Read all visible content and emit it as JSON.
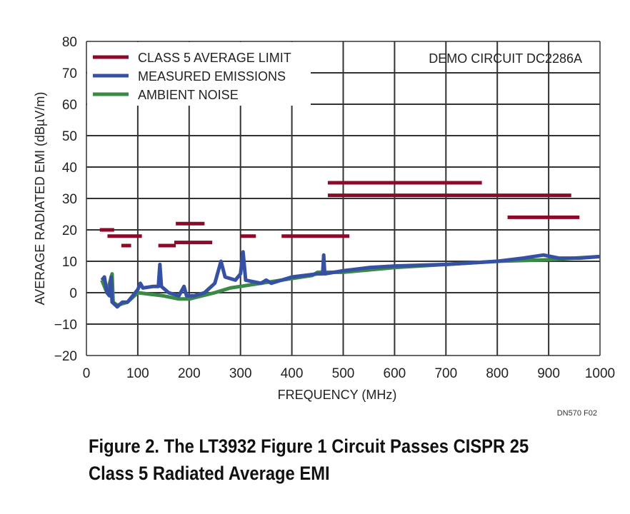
{
  "chart_data": {
    "type": "line",
    "xlabel": "FREQUENCY (MHz)",
    "ylabel": "AVERAGE RADIATED EMI  (dBµV/m)",
    "xlim": [
      0,
      1000
    ],
    "ylim": [
      -20,
      80
    ],
    "xticks": [
      0,
      100,
      200,
      300,
      400,
      500,
      600,
      700,
      800,
      900,
      1000
    ],
    "yticks": [
      -20,
      -10,
      0,
      10,
      20,
      30,
      40,
      50,
      60,
      70,
      80
    ],
    "grid": true,
    "legend_position": "top-left",
    "annotation": "DEMO CIRCUIT DC2286A",
    "figure_id": "DN570 F02",
    "series": [
      {
        "name": "CLASS 5 AVERAGE LIMIT",
        "color": "#8b0a2a",
        "segments": [
          {
            "x": [
              26,
              54
            ],
            "y": 20
          },
          {
            "x": [
              41,
              108
            ],
            "y": 18
          },
          {
            "x": [
              68,
              87
            ],
            "y": 15
          },
          {
            "x": [
              140,
              174
            ],
            "y": 15
          },
          {
            "x": [
              174,
              230
            ],
            "y": 22
          },
          {
            "x": [
              171,
              245
            ],
            "y": 16
          },
          {
            "x": [
              300,
              330
            ],
            "y": 18
          },
          {
            "x": [
              380,
              512
            ],
            "y": 18
          },
          {
            "x": [
              470,
              770
            ],
            "y": 35
          },
          {
            "x": [
              470,
              944
            ],
            "y": 31
          },
          {
            "x": [
              820,
              960
            ],
            "y": 24
          }
        ]
      },
      {
        "name": "MEASURED EMISSIONS",
        "color": "#3651a4",
        "x": [
          30,
          35,
          40,
          45,
          48,
          50,
          60,
          70,
          80,
          90,
          100,
          105,
          110,
          130,
          140,
          143,
          146,
          160,
          180,
          190,
          195,
          210,
          230,
          250,
          262,
          270,
          290,
          300,
          305,
          310,
          340,
          350,
          360,
          400,
          450,
          460,
          462,
          464,
          500,
          550,
          600,
          700,
          800,
          850,
          890,
          920,
          960,
          1000
        ],
        "y": [
          4,
          5,
          0,
          -1,
          5,
          -3,
          -4.5,
          -3,
          -3,
          -1,
          1,
          3,
          1.5,
          2,
          2,
          9,
          2,
          0,
          -1,
          2,
          -1,
          -1,
          0,
          3,
          10,
          5,
          4,
          6,
          13,
          4,
          3,
          4,
          3,
          5,
          6,
          6,
          12,
          6,
          7,
          8,
          8.5,
          9,
          10,
          11,
          12,
          11,
          11,
          11.5
        ]
      },
      {
        "name": "AMBIENT NOISE",
        "color": "#3a8a45",
        "x": [
          30,
          40,
          50,
          52,
          60,
          80,
          100,
          150,
          180,
          200,
          250,
          280,
          300,
          400,
          440,
          450,
          500,
          600,
          700,
          800,
          900,
          1000
        ],
        "y": [
          4,
          0,
          6,
          -3,
          -4,
          -3,
          0,
          -1,
          -2,
          -2,
          0,
          1.5,
          2,
          4.5,
          5.5,
          6.5,
          6.5,
          8,
          9,
          10,
          10.5,
          11.5
        ]
      }
    ]
  },
  "caption": {
    "line1": "Figure 2. The LT3932 Figure 1 Circuit Passes CISPR 25",
    "line2": "Class 5 Radiated Average EMI"
  }
}
